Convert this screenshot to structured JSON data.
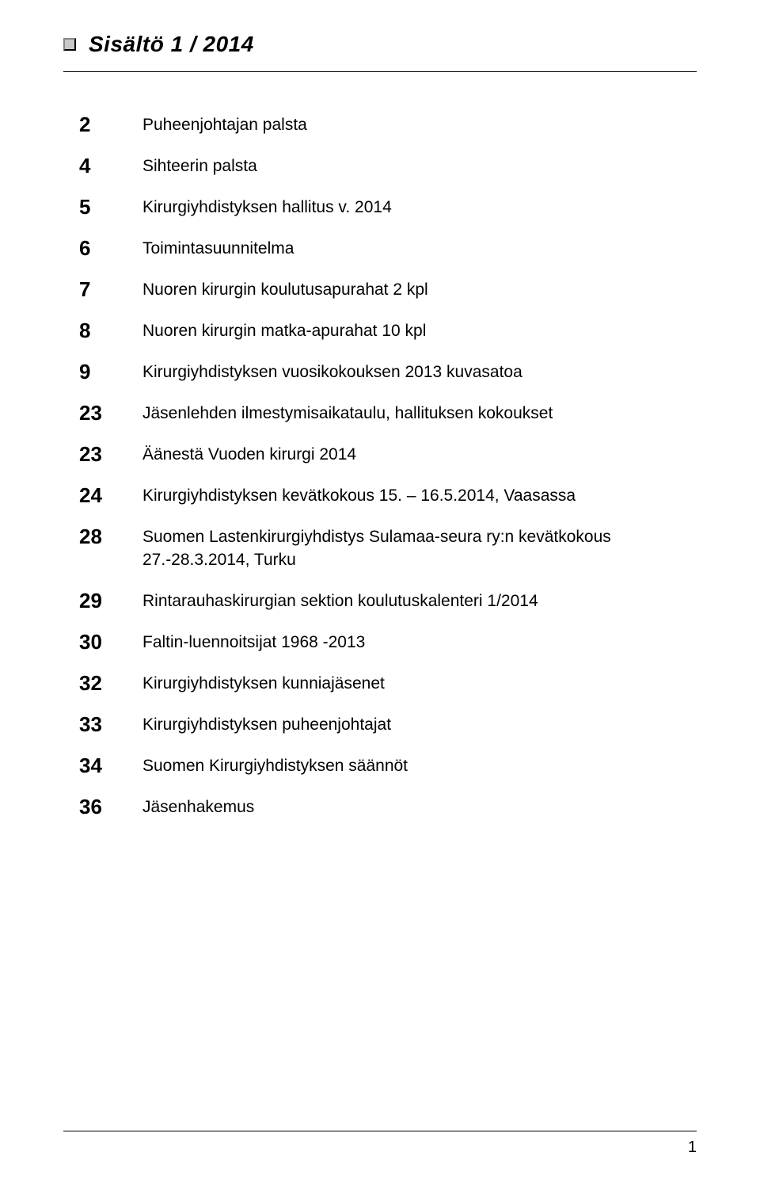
{
  "header": {
    "title": "Sisältö  1 / 2014"
  },
  "toc": {
    "rows": [
      {
        "num": "2",
        "text": "Puheenjohtajan palsta"
      },
      {
        "num": "4",
        "text": "Sihteerin palsta"
      },
      {
        "num": "5",
        "text": "Kirurgiyhdistyksen hallitus v. 2014"
      },
      {
        "num": "6",
        "text": "Toimintasuunnitelma"
      },
      {
        "num": "7",
        "text": "Nuoren kirurgin koulutusapurahat 2 kpl"
      },
      {
        "num": "8",
        "text": "Nuoren kirurgin matka-apurahat 10 kpl"
      },
      {
        "num": "9",
        "text": "Kirurgiyhdistyksen vuosikokouksen 2013 kuvasatoa"
      },
      {
        "num": "23",
        "text": "Jäsenlehden ilmestymisaikataulu, hallituksen kokoukset"
      },
      {
        "num": "23",
        "text": "Äänestä Vuoden kirurgi 2014"
      },
      {
        "num": "24",
        "text": "Kirurgiyhdistyksen kevätkokous 15. – 16.5.2014, Vaasassa"
      },
      {
        "num": "28",
        "text": "Suomen Lastenkirurgiyhdistys Sulamaa-seura ry:n kevätkokous 27.-28.3.2014, Turku"
      },
      {
        "num": "29",
        "text": "Rintarauhaskirurgian sektion koulutuskalenteri 1/2014"
      },
      {
        "num": "30",
        "text": "Faltin-luennoitsijat 1968 -2013"
      },
      {
        "num": "32",
        "text": "Kirurgiyhdistyksen kunniajäsenet"
      },
      {
        "num": "33",
        "text": "Kirurgiyhdistyksen puheenjohtajat"
      },
      {
        "num": "34",
        "text": "Suomen Kirurgiyhdistyksen säännöt"
      },
      {
        "num": "36",
        "text": "Jäsenhakemus"
      }
    ]
  },
  "footer": {
    "page_number": "1"
  },
  "style": {
    "background_color": "#ffffff",
    "text_color": "#000000",
    "header_fontsize": 28,
    "num_fontsize": 26,
    "body_fontsize": 21,
    "row_spacing": 20,
    "marker_color": "#c8c8c8"
  }
}
